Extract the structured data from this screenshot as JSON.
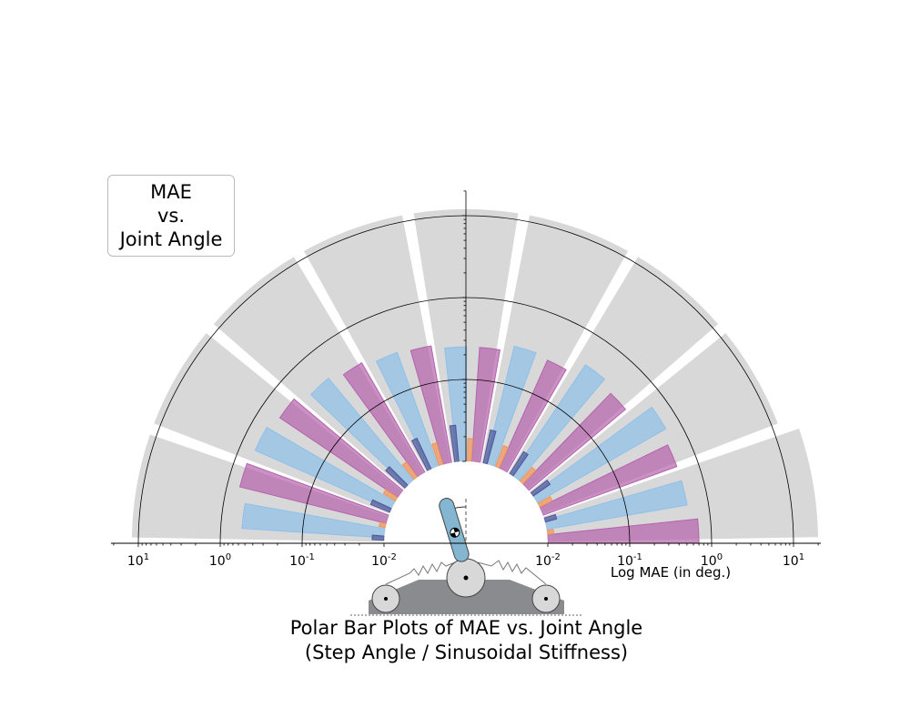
{
  "legend": {
    "line1": "MAE",
    "line2": "vs.",
    "line3": "Joint Angle"
  },
  "title": {
    "line1": "Polar Bar Plots of MAE vs. Joint Angle",
    "line2": "(Step Angle / Sinusoidal Stiffness)"
  },
  "colors": {
    "range": "#d8d8d8",
    "purple": "#b563ad",
    "lightblue": "#8ec0ea",
    "orange": "#f19458",
    "navy": "#4d5698",
    "ring": "#000000",
    "pendulum": "#85b6d1",
    "base": "#8a8b8e"
  },
  "chart_data": {
    "type": "polar-bar",
    "r_scale": "log",
    "r_min": 0.01,
    "r_ticks": [
      {
        "base": "10",
        "exp": "-2",
        "value": 0.01
      },
      {
        "base": "10",
        "exp": "-1",
        "value": 0.1
      },
      {
        "base": "10",
        "exp": "0",
        "value": 1
      },
      {
        "base": "10",
        "exp": "1",
        "value": 10
      }
    ],
    "r_label": "Log MAE (in deg.)",
    "angle_range_deg": [
      0,
      180
    ],
    "series": [
      {
        "color_key": "range",
        "offset": 0,
        "width": 0.9,
        "values": [
          20,
          12,
          12,
          12,
          12,
          12,
          12,
          12,
          12
        ]
      },
      {
        "color_key": "purple",
        "offset": -0.35,
        "width": 0.3,
        "values": [
          0.7,
          0.55,
          0.35,
          0.28,
          0.25,
          0.28,
          0.35,
          0.55,
          0.7
        ]
      },
      {
        "color_key": "lightblue",
        "offset": 0.15,
        "width": 0.32,
        "values": [
          0.55,
          0.65,
          0.42,
          0.3,
          0.25,
          0.3,
          0.42,
          0.65,
          0.55
        ]
      },
      {
        "color_key": "orange",
        "offset": -0.12,
        "width": 0.14,
        "values": [
          0.012,
          0.015,
          0.017,
          0.019,
          0.019,
          0.019,
          0.017,
          0.015,
          0.012
        ]
      },
      {
        "color_key": "navy",
        "offset": 0.32,
        "width": 0.14,
        "values": [
          0.014,
          0.018,
          0.021,
          0.026,
          0.028,
          0.026,
          0.021,
          0.018,
          0.014
        ]
      }
    ]
  }
}
